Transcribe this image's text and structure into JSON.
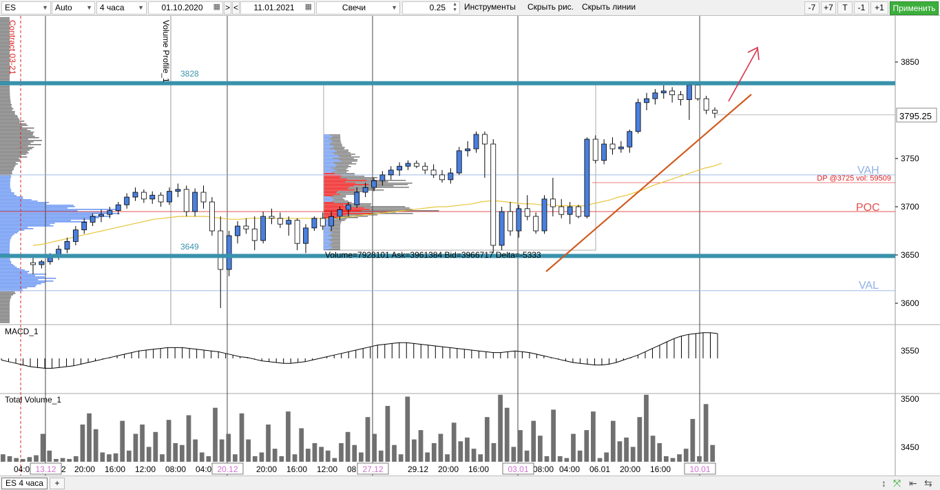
{
  "toolbar": {
    "symbol": "ES",
    "scale": "Auto",
    "timeframe": "4 часа",
    "date_from": "01.10.2020",
    "next_label": ">",
    "prev_label": "<",
    "date_to": "11.01.2021",
    "chart_type": "Свечи",
    "step": "0.25",
    "instruments_label": "Инструменты",
    "hide_drawings_label": "Скрыть рис.",
    "hide_lines_label": "Скрыть линии",
    "minus7": "-7",
    "plus7": "+7",
    "t_label": "T",
    "minus1": "-1",
    "plus1": "+1",
    "apply_label": "Применить"
  },
  "bottom": {
    "tab_label": "ES 4 часа",
    "add_tab_label": "+"
  },
  "colors": {
    "level_line": "#3a92ac",
    "candle_up": "#4a7fdc",
    "candle_down": "#ffffff",
    "profile_blue": "#6b97f2",
    "profile_gray": "#7b7b7b",
    "profile_red": "#ee1111",
    "poc_line": "#e05050",
    "vah_val_text": "#8fb0e6",
    "ma_line": "#e8c53a",
    "trend_line": "#cf5b1e",
    "arrow": "#d9304a",
    "contract_line": "#e02020",
    "apply_button": "#3cae3c"
  },
  "chart_data": {
    "type": "candlestick",
    "symbol": "ES",
    "timeframe": "4 часа",
    "price_axis": {
      "range": [
        3580,
        3900
      ],
      "ticks": [
        3600,
        3650,
        3700,
        3750,
        3850
      ],
      "current_price": "3795.25"
    },
    "indicator_axis": {
      "ticks": [
        3450,
        3500,
        3550
      ]
    },
    "x_labels": [
      "04:0",
      "2",
      "20:00",
      "16:00",
      "12:00",
      "08:00",
      "04:00",
      "20:00",
      "16:00",
      "12:00",
      "08",
      "29.12",
      "20:00",
      "16:00",
      "08:00",
      "04:00",
      "06.01",
      "20:00",
      "16:00"
    ],
    "date_markers": [
      "13.12",
      "20.12",
      "27.12",
      "03.01",
      "10.01"
    ],
    "levels": {
      "upper": "3828",
      "lower": "3649",
      "upper_value": 3828,
      "lower_value": 3649
    },
    "contract_label": "Contract 03-21",
    "volume_profile_label": "Volume Profile_1",
    "profile_labels": {
      "vah": "VAH",
      "poc": "POC",
      "val": "VAL",
      "vah_value": 3733,
      "poc_value": 3695,
      "val_value": 3613
    },
    "dp_label": "DP @3725 vol: 59509",
    "dp_value": 3725,
    "profile_stats": "Volume=7928101  Ask=3961384  Bid=3966717  Delta=-5333",
    "panes": {
      "macd": "MACD_1",
      "volume": "Total Volume_1"
    },
    "candles": [
      [
        3642,
        3648,
        3630,
        3640
      ],
      [
        3640,
        3645,
        3636,
        3643
      ],
      [
        3643,
        3652,
        3640,
        3648
      ],
      [
        3648,
        3660,
        3645,
        3656
      ],
      [
        3656,
        3668,
        3652,
        3664
      ],
      [
        3664,
        3680,
        3660,
        3676
      ],
      [
        3676,
        3688,
        3672,
        3684
      ],
      [
        3684,
        3693,
        3680,
        3690
      ],
      [
        3690,
        3697,
        3684,
        3692
      ],
      [
        3692,
        3700,
        3688,
        3696
      ],
      [
        3696,
        3705,
        3692,
        3702
      ],
      [
        3702,
        3714,
        3698,
        3710
      ],
      [
        3710,
        3720,
        3706,
        3715
      ],
      [
        3715,
        3718,
        3704,
        3708
      ],
      [
        3708,
        3716,
        3703,
        3712
      ],
      [
        3712,
        3715,
        3700,
        3705
      ],
      [
        3705,
        3720,
        3702,
        3716
      ],
      [
        3716,
        3724,
        3710,
        3718
      ],
      [
        3718,
        3722,
        3690,
        3695
      ],
      [
        3695,
        3719,
        3690,
        3715
      ],
      [
        3715,
        3722,
        3698,
        3705
      ],
      [
        3705,
        3710,
        3670,
        3675
      ],
      [
        3675,
        3690,
        3595,
        3635
      ],
      [
        3635,
        3675,
        3628,
        3670
      ],
      [
        3670,
        3685,
        3662,
        3680
      ],
      [
        3680,
        3688,
        3672,
        3677
      ],
      [
        3677,
        3690,
        3655,
        3665
      ],
      [
        3665,
        3695,
        3662,
        3690
      ],
      [
        3690,
        3698,
        3682,
        3688
      ],
      [
        3688,
        3694,
        3678,
        3682
      ],
      [
        3682,
        3690,
        3670,
        3686
      ],
      [
        3686,
        3688,
        3655,
        3662
      ],
      [
        3662,
        3682,
        3652,
        3678
      ],
      [
        3678,
        3690,
        3675,
        3688
      ],
      [
        3688,
        3694,
        3676,
        3680
      ],
      [
        3680,
        3695,
        3675,
        3690
      ],
      [
        3690,
        3700,
        3686,
        3697
      ],
      [
        3697,
        3705,
        3690,
        3702
      ],
      [
        3702,
        3720,
        3699,
        3715
      ],
      [
        3715,
        3725,
        3710,
        3720
      ],
      [
        3720,
        3730,
        3716,
        3727
      ],
      [
        3727,
        3737,
        3722,
        3733
      ],
      [
        3733,
        3742,
        3728,
        3738
      ],
      [
        3738,
        3746,
        3732,
        3742
      ],
      [
        3742,
        3748,
        3738,
        3745
      ],
      [
        3745,
        3748,
        3740,
        3742
      ],
      [
        3742,
        3746,
        3734,
        3738
      ],
      [
        3738,
        3744,
        3730,
        3733
      ],
      [
        3733,
        3738,
        3725,
        3728
      ],
      [
        3728,
        3740,
        3724,
        3735
      ],
      [
        3735,
        3762,
        3733,
        3758
      ],
      [
        3758,
        3768,
        3752,
        3760
      ],
      [
        3760,
        3778,
        3756,
        3775
      ],
      [
        3775,
        3778,
        3730,
        3765
      ],
      [
        3765,
        3770,
        3652,
        3660
      ],
      [
        3660,
        3700,
        3655,
        3695
      ],
      [
        3695,
        3705,
        3670,
        3675
      ],
      [
        3675,
        3702,
        3668,
        3698
      ],
      [
        3698,
        3712,
        3686,
        3690
      ],
      [
        3690,
        3694,
        3672,
        3675
      ],
      [
        3675,
        3712,
        3672,
        3708
      ],
      [
        3708,
        3730,
        3690,
        3700
      ],
      [
        3700,
        3708,
        3688,
        3692
      ],
      [
        3692,
        3705,
        3682,
        3700
      ],
      [
        3700,
        3702,
        3688,
        3690
      ],
      [
        3690,
        3772,
        3688,
        3770
      ],
      [
        3770,
        3774,
        3745,
        3748
      ],
      [
        3748,
        3770,
        3744,
        3765
      ],
      [
        3765,
        3772,
        3754,
        3760
      ],
      [
        3760,
        3768,
        3756,
        3762
      ],
      [
        3762,
        3780,
        3756,
        3778
      ],
      [
        3778,
        3812,
        3776,
        3808
      ],
      [
        3808,
        3818,
        3800,
        3812
      ],
      [
        3812,
        3822,
        3806,
        3818
      ],
      [
        3818,
        3826,
        3812,
        3820
      ],
      [
        3820,
        3824,
        3808,
        3816
      ],
      [
        3816,
        3820,
        3805,
        3811
      ],
      [
        3811,
        3830,
        3790,
        3826
      ],
      [
        3826,
        3828,
        3810,
        3812
      ],
      [
        3812,
        3815,
        3796,
        3800
      ],
      [
        3800,
        3803,
        3792,
        3797
      ]
    ],
    "ma": [
      3660,
      3661,
      3663,
      3665,
      3667,
      3669,
      3671,
      3673,
      3675,
      3677,
      3679,
      3681,
      3683,
      3685,
      3687,
      3688,
      3689,
      3690,
      3690,
      3690,
      3690,
      3689,
      3688,
      3687,
      3687,
      3688,
      3688,
      3688,
      3688,
      3688,
      3688,
      3688,
      3688,
      3688,
      3688,
      3688,
      3689,
      3690,
      3691,
      3692,
      3693,
      3694,
      3695,
      3696,
      3697,
      3698,
      3699,
      3700,
      3700,
      3701,
      3702,
      3703,
      3705,
      3706,
      3706,
      3705,
      3704,
      3703,
      3703,
      3702,
      3702,
      3701,
      3701,
      3701,
      3701,
      3703,
      3705,
      3707,
      3710,
      3712,
      3715,
      3718,
      3722,
      3725,
      3728,
      3731,
      3734,
      3737,
      3740,
      3742,
      3745
    ],
    "macd_hist": [
      -2,
      -4,
      -6,
      -8,
      -10,
      -11,
      -12,
      -12,
      -11,
      -10,
      -9,
      -7,
      -5,
      -3,
      -1,
      1,
      3,
      5,
      7,
      9,
      10,
      11,
      12,
      13,
      13,
      13,
      12,
      11,
      10,
      9,
      8,
      6,
      4,
      2,
      1,
      -1,
      -3,
      -4,
      -5,
      -6,
      -6,
      -5,
      -4,
      -2,
      0,
      2,
      4,
      6,
      8,
      10,
      12,
      14,
      16,
      17,
      18,
      19,
      19,
      18,
      17,
      16,
      15,
      14,
      13,
      12,
      11,
      10,
      9,
      8,
      7,
      7,
      8,
      9,
      8,
      7,
      5,
      3,
      1,
      -1,
      -3,
      -5,
      -6,
      -7,
      -8,
      -8,
      -7,
      -5,
      -2,
      1,
      4,
      8,
      12,
      16,
      20,
      24,
      27,
      29,
      30,
      31,
      31,
      30
    ],
    "volume_hist": [
      8,
      6,
      4,
      3,
      5,
      7,
      30,
      12,
      3,
      4,
      3,
      6,
      40,
      52,
      35,
      10,
      8,
      9,
      44,
      12,
      30,
      40,
      16,
      32,
      8,
      45,
      20,
      18,
      50,
      24,
      10,
      6,
      58,
      24,
      30,
      8,
      52,
      24,
      6,
      10,
      40,
      14,
      6,
      54,
      8,
      36,
      14,
      20,
      16,
      12,
      4,
      20,
      32,
      18,
      10,
      48,
      30,
      12,
      60,
      18,
      8,
      70,
      24,
      34,
      10,
      20,
      30,
      8,
      42,
      22,
      26,
      14,
      8,
      48,
      20,
      72,
      58,
      16,
      34,
      12,
      44,
      28,
      6,
      56,
      6,
      4,
      30,
      12,
      34,
      54,
      4,
      10,
      44,
      22,
      26,
      16,
      48,
      72,
      28,
      20,
      6,
      4,
      8,
      14,
      46,
      6,
      62,
      18
    ]
  }
}
